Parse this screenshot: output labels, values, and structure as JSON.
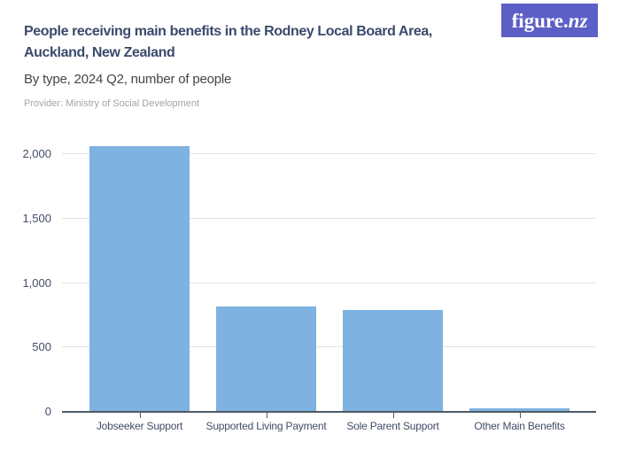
{
  "logo": {
    "text_main": "figure.",
    "text_suffix": "nz",
    "bg_color": "#5c5fc6"
  },
  "header": {
    "title_line1": "People receiving main benefits in the Rodney Local Board Area,",
    "title_line2": "Auckland, New Zealand",
    "subtitle": "By type, 2024 Q2, number of people",
    "provider": "Provider: Ministry of Social Development"
  },
  "chart_data": {
    "type": "bar",
    "title": "People receiving main benefits in the Rodney Local Board Area, Auckland, New Zealand",
    "subtitle": "By type, 2024 Q2, number of people",
    "categories": [
      "Jobseeker Support",
      "Supported Living Payment",
      "Sole Parent Support",
      "Other Main Benefits"
    ],
    "values": [
      2060,
      815,
      790,
      30
    ],
    "xlabel": "",
    "ylabel": "number of people",
    "ylim": [
      0,
      2165
    ],
    "yticks": [
      0,
      500,
      1000,
      1500,
      2000
    ],
    "ytick_labels": [
      "0",
      "500",
      "1,000",
      "1,500",
      "2,000"
    ],
    "grid": true,
    "legend": false,
    "bar_color": "#7eb2e0"
  },
  "colors": {
    "title": "#3a4a6c",
    "subtitle": "#43464b",
    "provider": "#a4a4a4",
    "axis_label": "#404d67",
    "gridline": "#e3e3e3",
    "baseline": "#4f5a64",
    "bar": "#7eb2e0",
    "logo_bg": "#5c5fc6",
    "background": "#ffffff"
  }
}
